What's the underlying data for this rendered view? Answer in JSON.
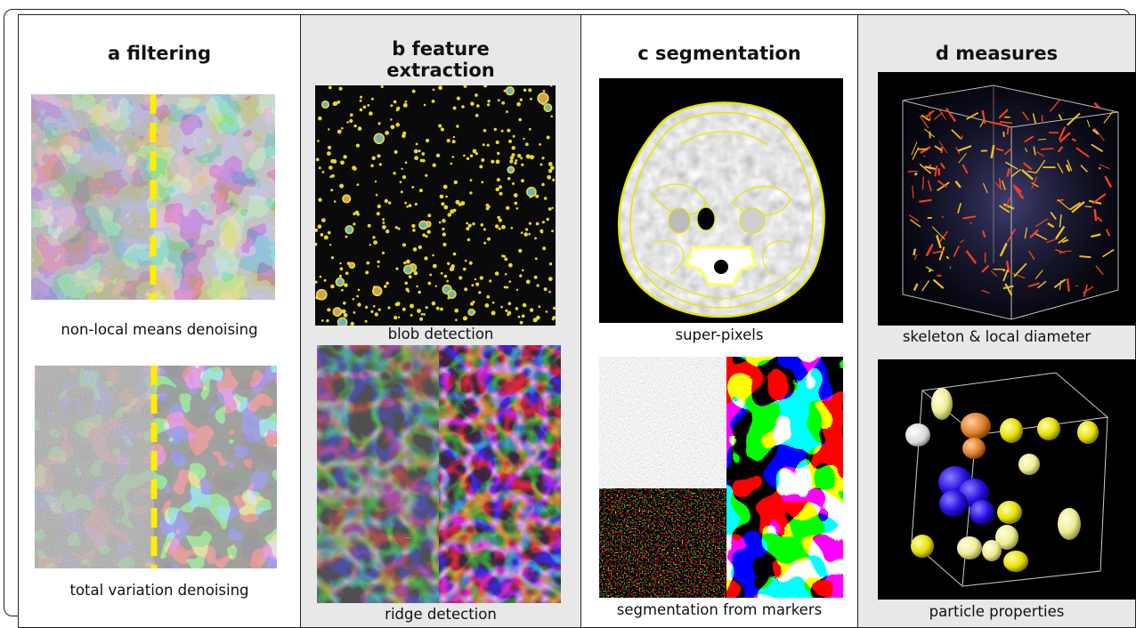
{
  "panels": {
    "a": {
      "title": "a filtering",
      "captions": [
        "non-local means denoising",
        "total variation denoising"
      ]
    },
    "b": {
      "title_line1": "b feature",
      "title_line2": "extraction",
      "captions": [
        "blob detection",
        "ridge detection"
      ]
    },
    "c": {
      "title": "c segmentation",
      "captions": [
        "super-pixels",
        "segmentation from markers"
      ]
    },
    "d": {
      "title": "d measures",
      "captions": [
        "skeleton & local diameter",
        "particle properties"
      ]
    }
  },
  "colors": {
    "panel_bg_gray": "#e8e8e8",
    "divider_yellow": "#ffee00",
    "contour_yellow": "#e6e600",
    "ridge_purple": "#c070e0",
    "marker_orange": "#e05a20",
    "particle_blue": "#2a10e0"
  }
}
